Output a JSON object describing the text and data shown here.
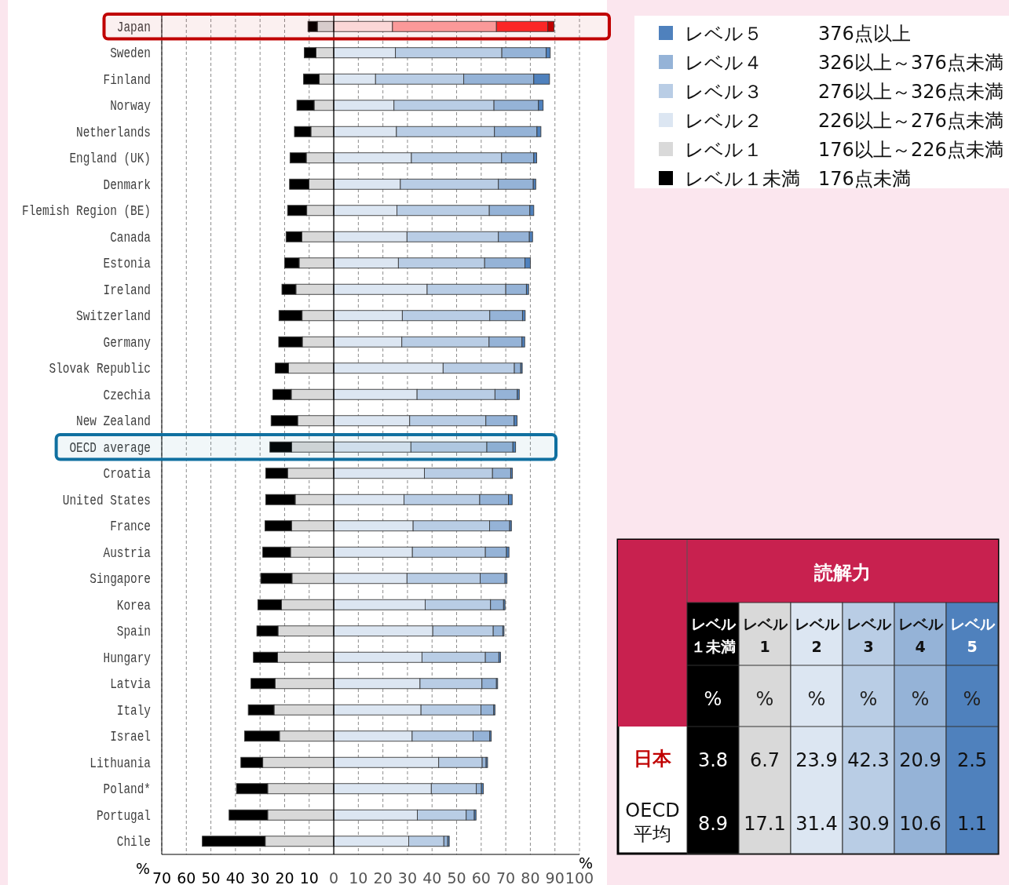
{
  "chart_data": [
    {
      "type": "bar",
      "orientation": "horizontal",
      "stacked": true,
      "categories": [
        "Japan",
        "Sweden",
        "Finland",
        "Norway",
        "Netherlands",
        "England (UK)",
        "Denmark",
        "Flemish Region (BE)",
        "Canada",
        "Estonia",
        "Ireland",
        "Switzerland",
        "Germany",
        "Slovak Republic",
        "Czechia",
        "New Zealand",
        "OECD average",
        "Croatia",
        "United States",
        "France",
        "Austria",
        "Singapore",
        "Korea",
        "Spain",
        "Hungary",
        "Latvia",
        "Italy",
        "Israel",
        "Lithuania",
        "Poland*",
        "Portugal",
        "Chile"
      ],
      "series": [
        {
          "name": "レベル１",
          "color": "#d9d9d9",
          "values": [
            -6.7,
            -7.2,
            -5.9,
            -8.0,
            -9.3,
            -11.2,
            -10.1,
            -11.0,
            -13.0,
            -14.1,
            -15.4,
            -12.9,
            -12.8,
            -18.4,
            -17.3,
            -14.7,
            -17.1,
            -18.8,
            -15.7,
            -17.2,
            -17.6,
            -17.0,
            -21.3,
            -22.7,
            -22.9,
            -23.9,
            -24.3,
            -22.1,
            -28.9,
            -26.9,
            -26.9,
            -27.9
          ]
        },
        {
          "name": "レベル１未満",
          "color": "#000000",
          "values": [
            -3.8,
            -4.8,
            -6.4,
            -7.0,
            -6.7,
            -6.6,
            -7.9,
            -7.8,
            -6.4,
            -5.9,
            -5.7,
            -9.4,
            -9.6,
            -5.4,
            -7.5,
            -10.8,
            -8.9,
            -8.9,
            -12.0,
            -10.8,
            -11.3,
            -12.7,
            -9.6,
            -8.6,
            -9.8,
            -9.8,
            -10.5,
            -14.2,
            -8.9,
            -12.7,
            -15.7,
            -25.6
          ]
        },
        {
          "name": "レベル２",
          "color": "#dce6f2",
          "colors": [
            "#ffe5e5",
            "#dce6f2",
            "#dce6f2",
            "#dce6f2",
            "#dce6f2",
            "#dce6f2",
            "#dce6f2",
            "#dce6f2",
            "#dce6f2",
            "#dce6f2",
            "#dce6f2",
            "#dce6f2",
            "#dce6f2",
            "#dce6f2",
            "#dce6f2",
            "#dce6f2",
            "#dce6f2",
            "#dce6f2",
            "#dce6f2",
            "#dce6f2",
            "#dce6f2",
            "#dce6f2",
            "#dce6f2",
            "#dce6f2",
            "#dce6f2",
            "#dce6f2",
            "#dce6f2",
            "#dce6f2",
            "#dce6f2",
            "#dce6f2",
            "#dce6f2",
            "#dce6f2"
          ],
          "values": [
            23.9,
            25.1,
            17.0,
            24.5,
            25.5,
            31.6,
            27.1,
            25.7,
            29.8,
            26.3,
            38.0,
            27.9,
            27.7,
            44.5,
            33.9,
            30.9,
            31.4,
            36.9,
            28.6,
            32.3,
            32.0,
            29.8,
            37.2,
            40.3,
            35.9,
            35.1,
            35.5,
            31.9,
            42.7,
            39.7,
            34.0,
            30.5
          ]
        },
        {
          "name": "レベル３",
          "color": "#b9cde5",
          "colors": [
            "#ffa3a3",
            "#b9cde5",
            "#b9cde5",
            "#b9cde5",
            "#b9cde5",
            "#b9cde5",
            "#b9cde5",
            "#b9cde5",
            "#b9cde5",
            "#b9cde5",
            "#b9cde5",
            "#b9cde5",
            "#b9cde5",
            "#b9cde5",
            "#b9cde5",
            "#b9cde5",
            "#b9cde5",
            "#b9cde5",
            "#b9cde5",
            "#b9cde5",
            "#b9cde5",
            "#b9cde5",
            "#b9cde5",
            "#b9cde5",
            "#b9cde5",
            "#b9cde5",
            "#b9cde5",
            "#b9cde5",
            "#b9cde5",
            "#b9cde5",
            "#b9cde5",
            "#b9cde5"
          ],
          "values": [
            42.3,
            43.3,
            35.9,
            40.7,
            39.9,
            36.7,
            39.9,
            37.6,
            37.2,
            35.1,
            32.0,
            35.6,
            35.5,
            29.0,
            31.7,
            31.0,
            30.9,
            27.7,
            30.8,
            31.1,
            29.7,
            29.8,
            26.6,
            24.6,
            25.8,
            25.2,
            24.4,
            24.8,
            17.7,
            18.3,
            19.9,
            14.3
          ]
        },
        {
          "name": "レベル４",
          "color": "#95b3d7",
          "colors": [
            "#ff2a2a",
            "#95b3d7",
            "#95b3d7",
            "#95b3d7",
            "#95b3d7",
            "#95b3d7",
            "#95b3d7",
            "#95b3d7",
            "#95b3d7",
            "#95b3d7",
            "#95b3d7",
            "#95b3d7",
            "#95b3d7",
            "#95b3d7",
            "#95b3d7",
            "#95b3d7",
            "#95b3d7",
            "#95b3d7",
            "#95b3d7",
            "#95b3d7",
            "#95b3d7",
            "#95b3d7",
            "#95b3d7",
            "#95b3d7",
            "#95b3d7",
            "#95b3d7",
            "#95b3d7",
            "#95b3d7",
            "#95b3d7",
            "#95b3d7",
            "#95b3d7",
            "#95b3d7"
          ],
          "values": [
            20.9,
            18.0,
            28.5,
            18.1,
            17.3,
            13.1,
            14.2,
            16.5,
            12.6,
            16.4,
            8.4,
            13.3,
            13.4,
            2.6,
            9.1,
            11.5,
            10.6,
            7.4,
            11.7,
            8.2,
            8.6,
            10.1,
            5.3,
            3.9,
            5.5,
            5.9,
            5.2,
            6.8,
            1.6,
            2.1,
            3.3,
            1.6
          ]
        },
        {
          "name": "レベル５",
          "color": "#4f81bd",
          "colors": [
            "#c00000",
            "#4f81bd",
            "#4f81bd",
            "#4f81bd",
            "#4f81bd",
            "#4f81bd",
            "#4f81bd",
            "#4f81bd",
            "#4f81bd",
            "#4f81bd",
            "#4f81bd",
            "#4f81bd",
            "#4f81bd",
            "#4f81bd",
            "#4f81bd",
            "#4f81bd",
            "#4f81bd",
            "#4f81bd",
            "#4f81bd",
            "#4f81bd",
            "#4f81bd",
            "#4f81bd",
            "#4f81bd",
            "#4f81bd",
            "#4f81bd",
            "#4f81bd",
            "#4f81bd",
            "#4f81bd",
            "#4f81bd",
            "#4f81bd",
            "#4f81bd",
            "#4f81bd"
          ],
          "values": [
            2.5,
            1.7,
            6.4,
            1.9,
            1.6,
            1.2,
            1.0,
            1.6,
            1.3,
            2.2,
            0.9,
            1.1,
            1.1,
            0.6,
            0.8,
            1.2,
            1.1,
            0.7,
            1.5,
            0.7,
            1.0,
            0.8,
            0.6,
            0.5,
            0.7,
            0.5,
            0.5,
            0.6,
            0.6,
            0.8,
            0.7,
            0.6
          ]
        }
      ],
      "xlim": [
        -70,
        100
      ],
      "xticks": [
        {
          "value": -70,
          "label": "70"
        },
        {
          "value": -60,
          "label": "60"
        },
        {
          "value": -50,
          "label": "50"
        },
        {
          "value": -40,
          "label": "40"
        },
        {
          "value": -30,
          "label": "30"
        },
        {
          "value": -20,
          "label": "20"
        },
        {
          "value": -10,
          "label": "10"
        },
        0,
        10,
        20,
        30,
        40,
        50,
        60,
        70,
        80,
        90,
        100
      ],
      "grid": "x",
      "legend": "right",
      "bands": [
        {
          "axis": "y",
          "from": "Japan",
          "to": "Japan",
          "color": "#c00000"
        },
        {
          "axis": "y",
          "from": "OECD average",
          "to": "OECD average",
          "color": "#1070a0"
        }
      ],
      "annotations": [
        "376点以上",
        "326以上～376点未満",
        "276以上～326点未満",
        "226以上～276点未満",
        "176以上～226点未満",
        "176点未満",
        "%",
        "%"
      ]
    },
    {
      "type": "heatmap",
      "title": "読解力",
      "categories": [
        "レベル１未満",
        "レベル1",
        "レベル2",
        "レベル3",
        "レベル4",
        "レベル5"
      ],
      "y_categories": [
        "日本",
        "OECD\n平均"
      ],
      "colors": [
        "#000000",
        "#d9d9d9",
        "#dce6f2",
        "#b9cde5",
        "#95b3d7",
        "#4f81bd"
      ],
      "cells": [
        [
          3.8,
          6.7,
          23.9,
          42.3,
          20.9,
          2.5
        ],
        [
          8.9,
          17.1,
          31.4,
          30.9,
          10.6,
          1.1
        ]
      ],
      "data_labels": true,
      "annotations": [
        "%",
        "%",
        "%",
        "%",
        "%",
        "%"
      ]
    }
  ]
}
